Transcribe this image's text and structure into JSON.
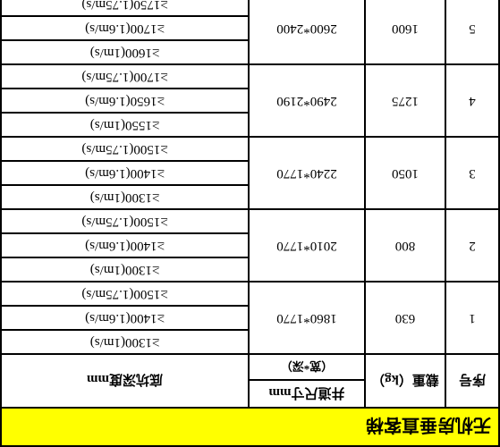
{
  "title": "无机房垂直客梯",
  "headers": {
    "seq": "序号",
    "load": "载重（kg）",
    "shaft_top": "井道尺寸mm",
    "shaft_sub": "（宽*深）",
    "pit": "底坑深度mm"
  },
  "rows": [
    {
      "seq": "1",
      "load": "630",
      "shaft": "1860*1770",
      "pits": [
        "≥1300(1m/s)",
        "≥1400(1.6m/s)",
        "≥1500(1.75m/s)"
      ]
    },
    {
      "seq": "2",
      "load": "800",
      "shaft": "2010*1770",
      "pits": [
        "≥1300(1m/s)",
        "≥1400(1.6m/s)",
        "≥1500(1.75m/s)"
      ]
    },
    {
      "seq": "3",
      "load": "1050",
      "shaft": "2240*1770",
      "pits": [
        "≥1300(1m/s)",
        "≥1400(1.6m/s)",
        "≥1500(1.75m/s)"
      ]
    },
    {
      "seq": "4",
      "load": "1275",
      "shaft": "2490*2190",
      "pits": [
        "≥1550(1m/s)",
        "≥1650(1.6m/s)",
        "≥1700(1.75m/s)"
      ]
    },
    {
      "seq": "5",
      "load": "1600",
      "shaft": "2600*2400",
      "pits": [
        "≥1600(1m/s)",
        "≥1700(1.6m/s)",
        "≥1750(1.75m/s)"
      ]
    }
  ],
  "styling": {
    "title_bg": "#ffff00",
    "border_color": "#000000",
    "background": "#ffffff",
    "title_fontsize": 20,
    "cell_fontsize": 15,
    "header_fontsize": 15,
    "sub_fontsize": 13,
    "rotation_deg": 180
  }
}
